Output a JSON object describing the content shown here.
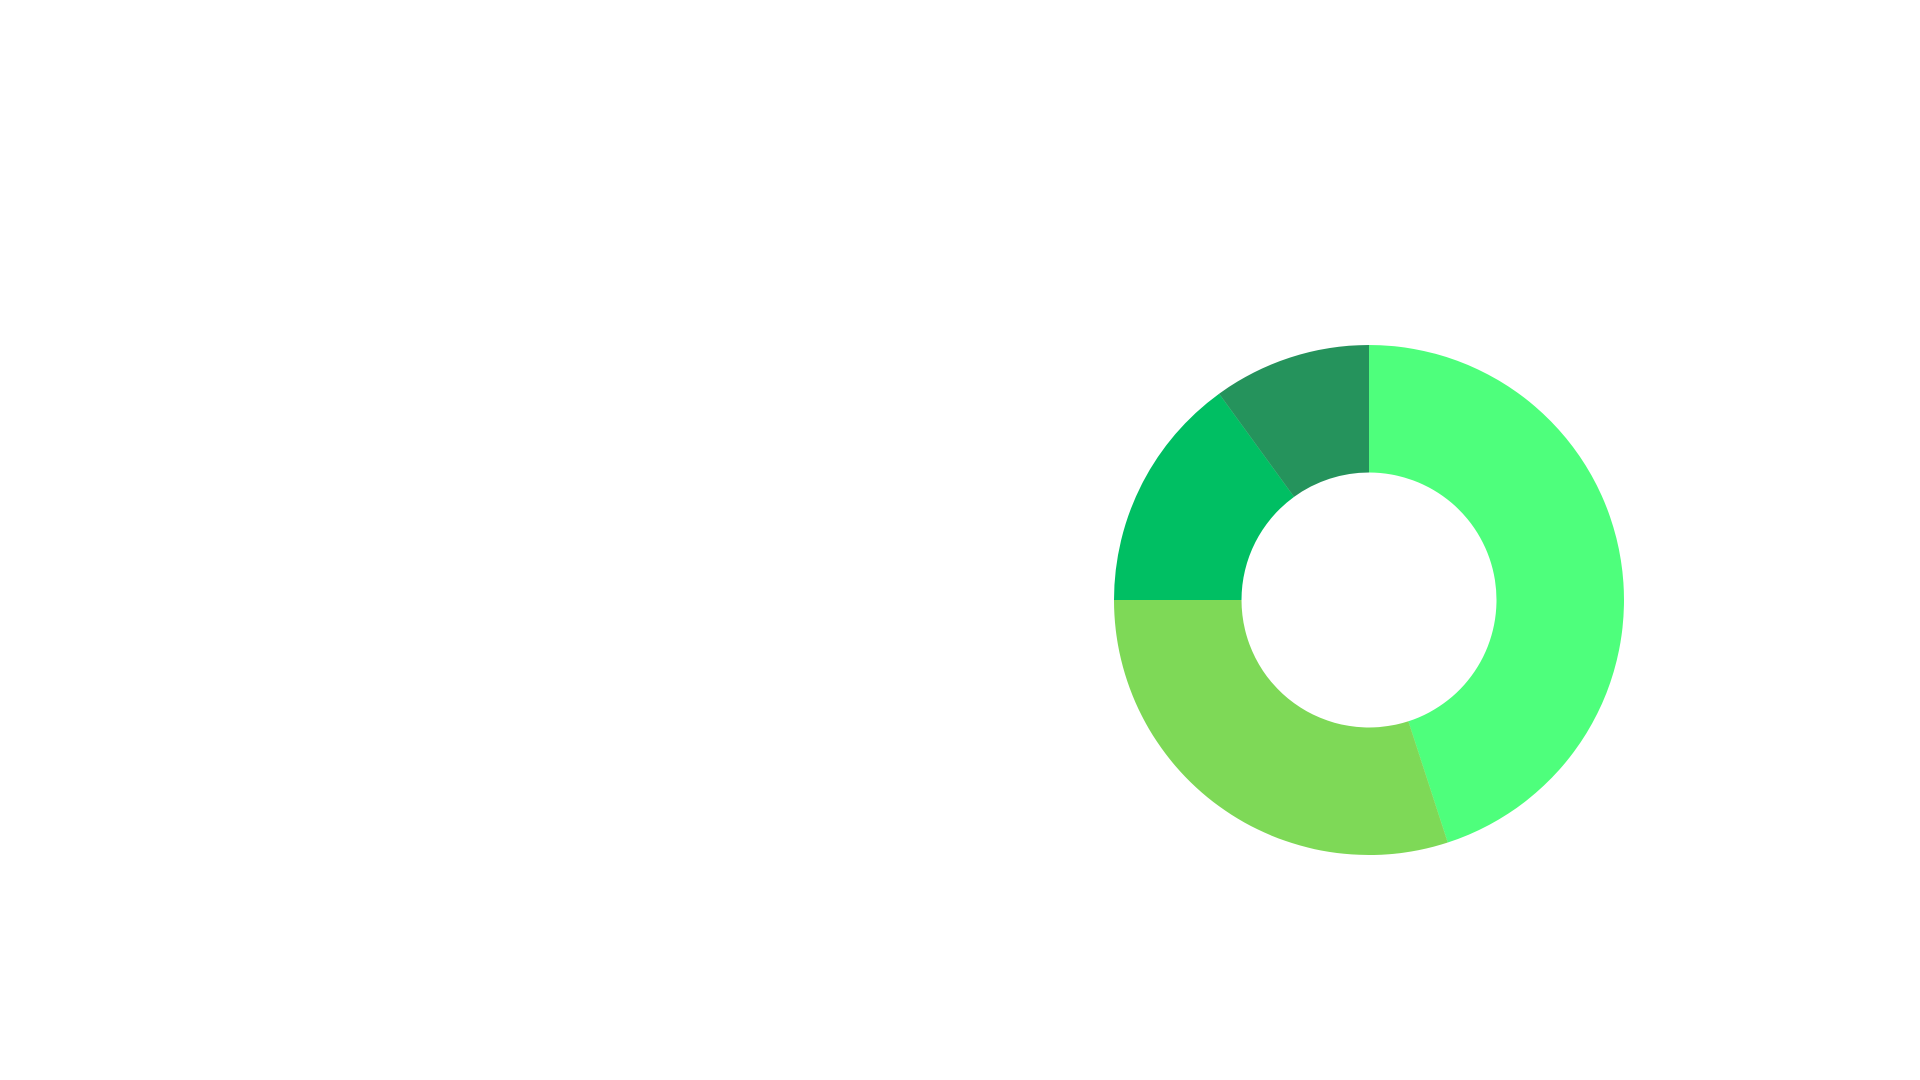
{
  "chart_data": {
    "type": "pie",
    "variant": "donut",
    "title": "",
    "legend": "none",
    "start": "top",
    "direction": "clockwise",
    "inner_radius_ratio": 0.5,
    "slices": [
      {
        "value": 45,
        "color": "#4EFF7C"
      },
      {
        "value": 30,
        "color": "#7ED957"
      },
      {
        "value": 15,
        "color": "#00BF63"
      },
      {
        "value": 10,
        "color": "#25935C"
      }
    ]
  }
}
